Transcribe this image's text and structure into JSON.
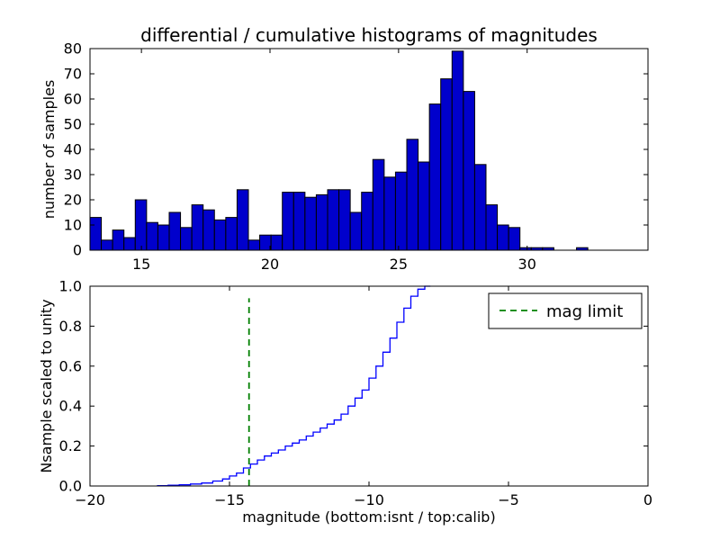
{
  "figure": {
    "background": "#ffffff",
    "frame_color": "#000000",
    "text_color": "#000000"
  },
  "chart_data": [
    {
      "type": "bar",
      "name": "differential-histogram",
      "title": "differential / cumulative histograms of magnitudes",
      "xlabel": "",
      "ylabel": "number of samples",
      "xlim": [
        13.0,
        34.7
      ],
      "ylim": [
        0,
        80
      ],
      "xticks": [
        15,
        20,
        25,
        30
      ],
      "xtick_labels": [
        "15",
        "20",
        "25",
        "30"
      ],
      "yticks": [
        0,
        10,
        20,
        30,
        40,
        50,
        60,
        70,
        80
      ],
      "ytick_labels": [
        "0",
        "10",
        "20",
        "30",
        "40",
        "50",
        "60",
        "70",
        "80"
      ],
      "grid": false,
      "legend": null,
      "bar_color": "#0000cc",
      "bar_edge_color": "#000000",
      "bins": {
        "start": 13.0,
        "width": 0.44
      },
      "values": [
        13,
        4,
        8,
        5,
        20,
        11,
        10,
        15,
        9,
        18,
        16,
        12,
        13,
        24,
        4,
        6,
        6,
        23,
        23,
        21,
        22,
        24,
        24,
        15,
        23,
        36,
        29,
        31,
        44,
        35,
        58,
        68,
        79,
        63,
        34,
        18,
        10,
        9,
        1,
        1,
        1,
        0,
        0,
        1
      ]
    },
    {
      "type": "line",
      "name": "cumulative-histogram",
      "title": "",
      "xlabel": "magnitude (bottom:isnt / top:calib)",
      "ylabel": "Nsample scaled to unity",
      "xlim": [
        -20,
        0
      ],
      "ylim": [
        0,
        1.0
      ],
      "xticks": [
        -20,
        -15,
        -10,
        -5,
        0
      ],
      "xtick_labels": [
        "−20",
        "−15",
        "−10",
        "−5",
        "0"
      ],
      "yticks": [
        0,
        0.2,
        0.4,
        0.6,
        0.8,
        1.0
      ],
      "ytick_labels": [
        "0.0",
        "0.2",
        "0.4",
        "0.6",
        "0.8",
        "1.0"
      ],
      "grid": false,
      "step": true,
      "line_color": "#0000ff",
      "x": [
        -17.6,
        -17.2,
        -16.8,
        -16.4,
        -16.0,
        -15.6,
        -15.25,
        -15.0,
        -14.75,
        -14.5,
        -14.25,
        -14.0,
        -13.75,
        -13.5,
        -13.25,
        -13.0,
        -12.75,
        -12.5,
        -12.25,
        -12.0,
        -11.75,
        -11.5,
        -11.25,
        -11.0,
        -10.75,
        -10.5,
        -10.25,
        -10.0,
        -9.75,
        -9.5,
        -9.25,
        -9.0,
        -8.75,
        -8.5,
        -8.25,
        -8.0,
        -7.8
      ],
      "y": [
        0.002,
        0.004,
        0.006,
        0.01,
        0.015,
        0.025,
        0.035,
        0.05,
        0.065,
        0.09,
        0.11,
        0.13,
        0.15,
        0.165,
        0.18,
        0.2,
        0.215,
        0.23,
        0.25,
        0.27,
        0.29,
        0.31,
        0.33,
        0.36,
        0.4,
        0.44,
        0.48,
        0.54,
        0.6,
        0.67,
        0.74,
        0.82,
        0.89,
        0.95,
        0.985,
        1.0,
        1.0
      ],
      "vline": {
        "x": -14.3,
        "ymax": 0.94,
        "color": "#008000",
        "dash": "7 5",
        "label": "mag limit"
      },
      "legend": {
        "position": "upper right",
        "entries": [
          {
            "label": "mag limit",
            "color": "#008000",
            "dash": true
          }
        ]
      }
    }
  ]
}
